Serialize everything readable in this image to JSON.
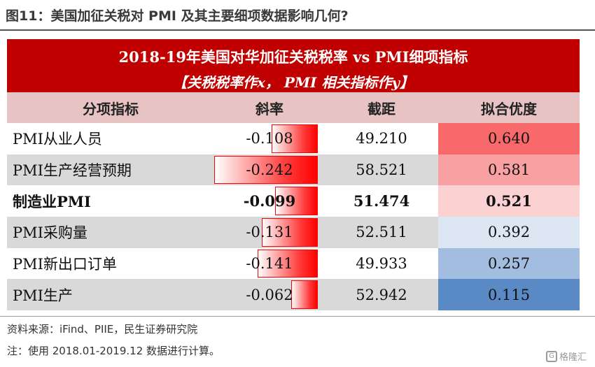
{
  "figure": {
    "title": "图11：美国加征关税对 PMI 及其主要细项数据影响几何?"
  },
  "table": {
    "banner_line1": "2018-19年美国对华加征关税税率 vs PMI细项指标",
    "banner_line2": "【关税税率作x， PMI 相关指标作y】",
    "headers": [
      "分项指标",
      "斜率",
      "截距",
      "拟合优度"
    ],
    "rows": [
      {
        "name": "PMI从业人员",
        "slope": "-0.108",
        "intercept": "49.210",
        "r2": "0.640",
        "slope_num": -0.108,
        "r2_color": "#f8696b",
        "bold": false
      },
      {
        "name": "PMI生产经营预期",
        "slope": "-0.242",
        "intercept": "58.521",
        "r2": "0.581",
        "slope_num": -0.242,
        "r2_color": "#f9a0a2",
        "bold": false
      },
      {
        "name": "制造业PMI",
        "slope": "-0.099",
        "intercept": "51.474",
        "r2": "0.521",
        "slope_num": -0.099,
        "r2_color": "#fcd1d2",
        "bold": true
      },
      {
        "name": "PMI采购量",
        "slope": "-0.131",
        "intercept": "52.511",
        "r2": "0.392",
        "slope_num": -0.131,
        "r2_color": "#dde6f3",
        "bold": false
      },
      {
        "name": "PMI新出口订单",
        "slope": "-0.141",
        "intercept": "49.933",
        "r2": "0.257",
        "slope_num": -0.141,
        "r2_color": "#a3bde0",
        "bold": false
      },
      {
        "name": "PMI生产",
        "slope": "-0.062",
        "intercept": "52.942",
        "r2": "0.115",
        "slope_num": -0.062,
        "r2_color": "#5a8ac6",
        "bold": false
      }
    ]
  },
  "footer": {
    "source": "资料来源：iFind、PIIE，民生证券研究院",
    "note": "注：使用 2018.01-2019.12 数据进行计算。"
  },
  "watermark": {
    "text": "格隆汇",
    "icon": "brand-logo-icon"
  }
}
